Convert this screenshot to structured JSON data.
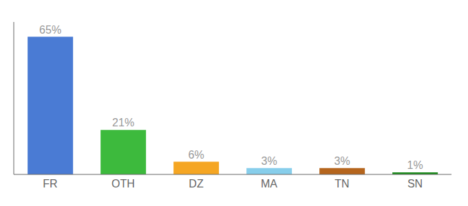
{
  "chart_data": {
    "type": "bar",
    "categories": [
      "FR",
      "OTH",
      "DZ",
      "MA",
      "TN",
      "SN"
    ],
    "values": [
      65,
      21,
      6,
      3,
      3,
      1
    ],
    "value_labels": [
      "65%",
      "21%",
      "6%",
      "3%",
      "3%",
      "1%"
    ],
    "colors": [
      "#4a7bd4",
      "#3dba3d",
      "#f5a623",
      "#87ceeb",
      "#b5651d",
      "#1e8c1e"
    ],
    "ylim": [
      0,
      72
    ],
    "data_labels": true,
    "tick_labels": "x",
    "grid": false
  }
}
